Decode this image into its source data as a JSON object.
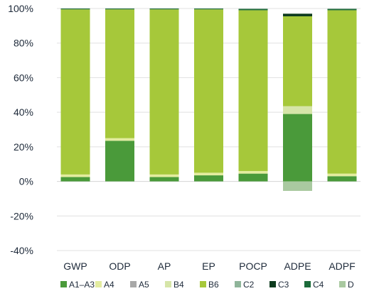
{
  "chart_data": {
    "type": "bar",
    "stacked": true,
    "categories": [
      "GWP",
      "ODP",
      "AP",
      "EP",
      "POCP",
      "ADPE",
      "ADPF"
    ],
    "y_ticks": [
      "100%",
      "80%",
      "60%",
      "40%",
      "20%",
      "0%",
      "-20%",
      "-40%"
    ],
    "ylim": [
      -40,
      100
    ],
    "grid": true,
    "legend_position": "bottom",
    "series": [
      {
        "name": "A1–A3",
        "color": "#4a9a3a",
        "values": [
          2.5,
          23.5,
          2.5,
          3.5,
          4.5,
          39,
          3
        ]
      },
      {
        "name": "A4",
        "color": "#e3ec9f",
        "values": [
          1.5,
          1.5,
          1.5,
          1.5,
          1.5,
          0,
          1.5
        ]
      },
      {
        "name": "A5",
        "color": "#a8a8a8",
        "values": [
          0,
          0,
          0,
          0,
          0,
          0,
          0
        ]
      },
      {
        "name": "B4",
        "color": "#d6e5a8",
        "values": [
          0,
          0,
          0,
          0,
          0,
          4.5,
          0
        ]
      },
      {
        "name": "B6",
        "color": "#a6c83a",
        "values": [
          95.5,
          74.5,
          95.5,
          94.5,
          93,
          52,
          94.5
        ]
      },
      {
        "name": "C2",
        "color": "#8fb59a",
        "values": [
          0,
          0,
          0,
          0,
          0,
          0,
          0
        ]
      },
      {
        "name": "C3",
        "color": "#0d3b1e",
        "values": [
          0,
          0,
          0,
          0,
          0,
          1.5,
          0
        ]
      },
      {
        "name": "C4",
        "color": "#1c6b3a",
        "values": [
          0.5,
          0.5,
          0.5,
          0.5,
          0.8,
          0,
          0.8
        ]
      },
      {
        "name": "D",
        "color": "#a9c9a0",
        "values": [
          0,
          0,
          0,
          0,
          0,
          -5.5,
          0
        ]
      }
    ]
  }
}
